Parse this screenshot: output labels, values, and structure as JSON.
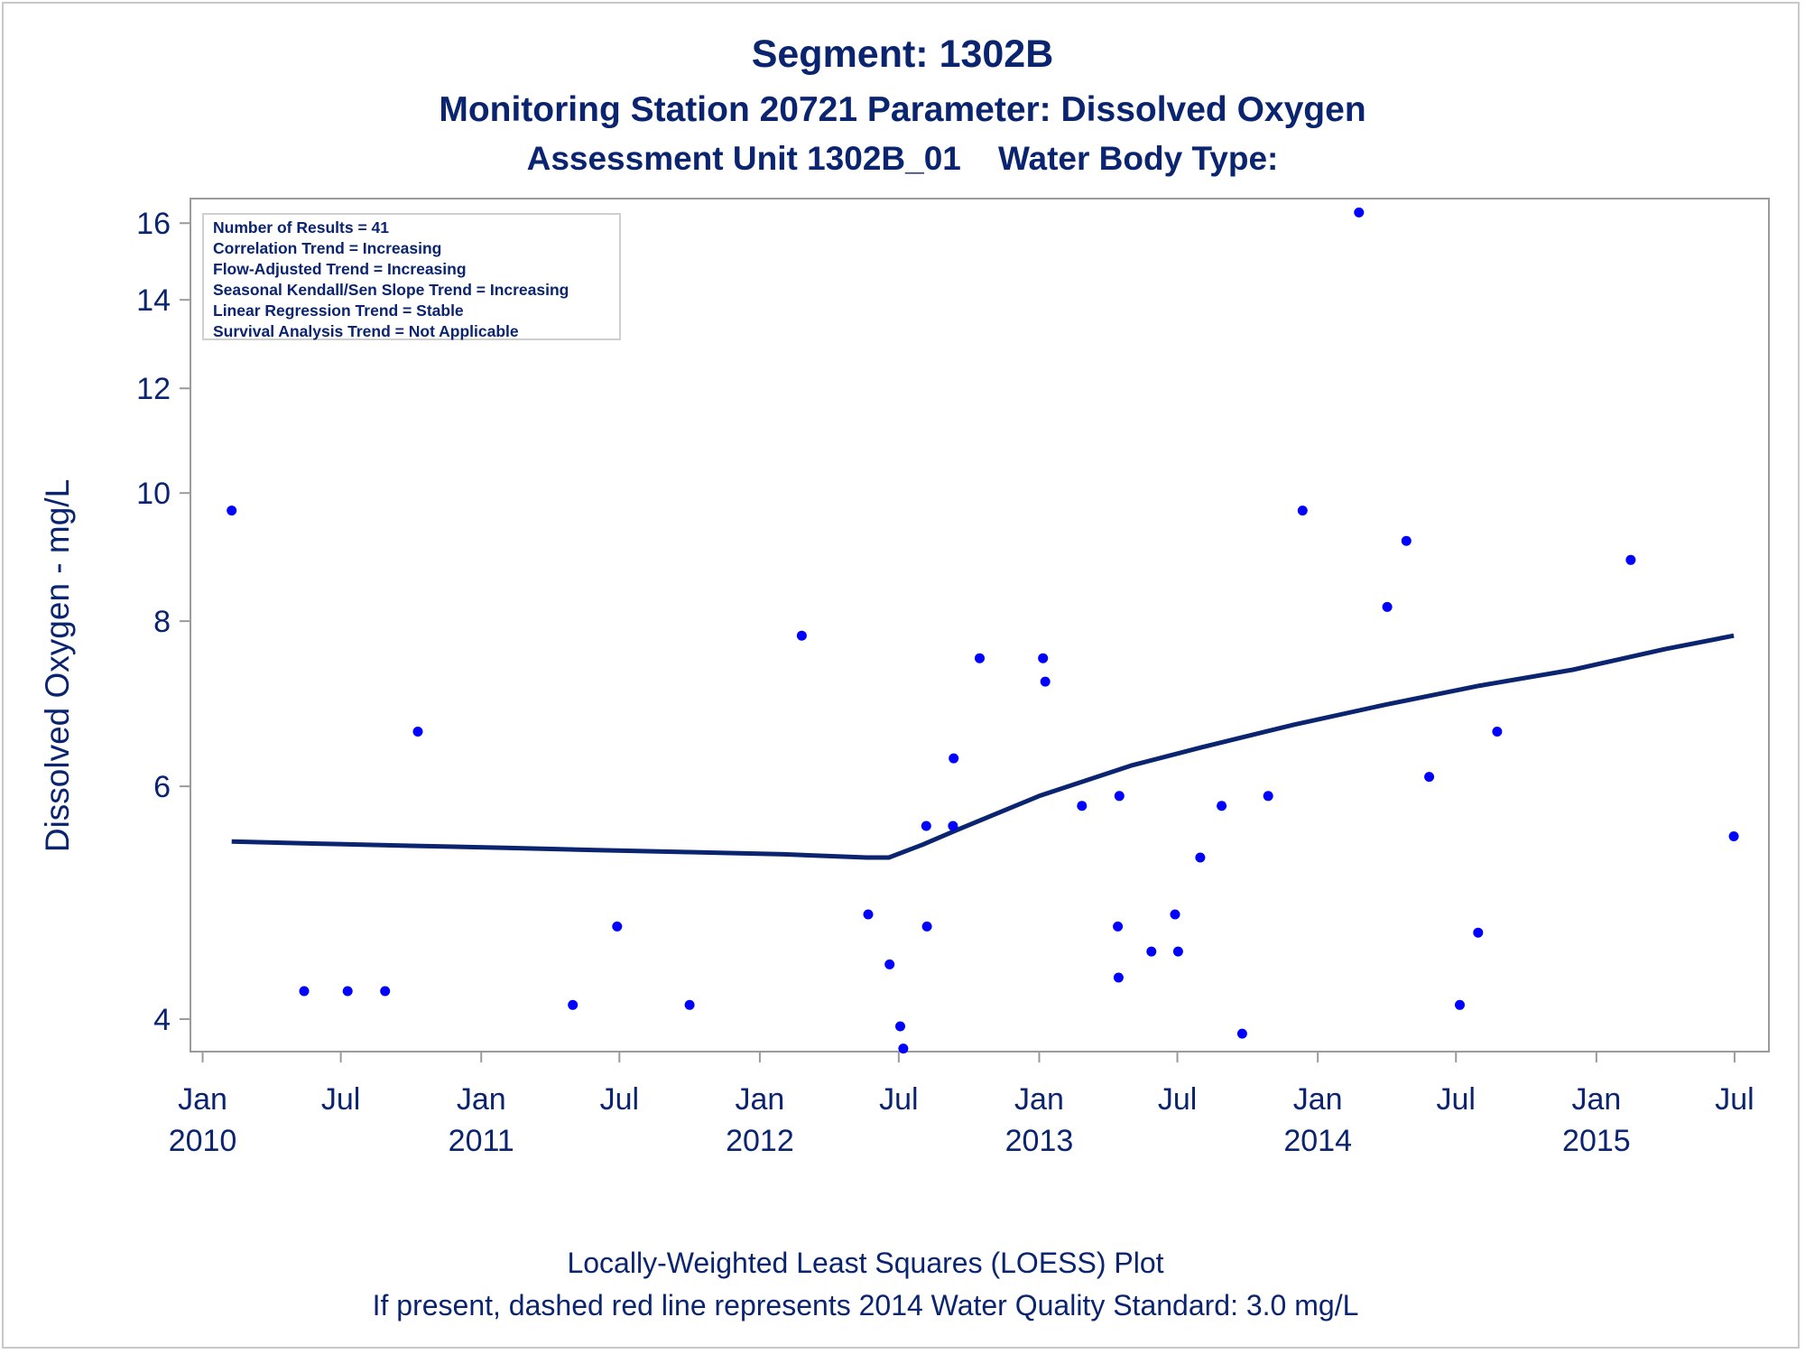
{
  "titles": {
    "line1": "Segment: 1302B",
    "line2": "Monitoring Station 20721 Parameter: Dissolved Oxygen",
    "line3": "Assessment Unit 1302B_01    Water Body Type:"
  },
  "footnotes": {
    "line1": "Locally-Weighted Least Squares (LOESS) Plot",
    "line2": "If present, dashed red line represents 2014 Water Quality Standard: 3.0 mg/L"
  },
  "stats_box": [
    "Number of Results = 41",
    "Correlation Trend = Increasing",
    "Flow-Adjusted Trend = Increasing",
    "Seasonal Kendall/Sen Slope Trend = Increasing",
    "Linear Regression Trend = Stable",
    "Survival Analysis Trend = Not Applicable"
  ],
  "colors": {
    "points": "#0000ff",
    "loess_line": "#0a2470",
    "text": "#0a2470",
    "axis": "#9a9a9a"
  },
  "chart_data": {
    "type": "scatter",
    "title": "Segment: 1302B",
    "xlabel": "",
    "ylabel": "Dissolved Oxygen - mg/L",
    "y_scale": "log",
    "xlim": [
      "2009-12-16",
      "2015-08-15"
    ],
    "ylim": [
      3.78,
      16.7
    ],
    "y_ticks": [
      4,
      6,
      8,
      10,
      12,
      14,
      16
    ],
    "x_ticks": [
      {
        "date": "2010-01-01",
        "label": "Jan",
        "year": "2010"
      },
      {
        "date": "2010-07-01",
        "label": "Jul",
        "year": ""
      },
      {
        "date": "2011-01-01",
        "label": "Jan",
        "year": "2011"
      },
      {
        "date": "2011-07-01",
        "label": "Jul",
        "year": ""
      },
      {
        "date": "2012-01-01",
        "label": "Jan",
        "year": "2012"
      },
      {
        "date": "2012-07-01",
        "label": "Jul",
        "year": ""
      },
      {
        "date": "2013-01-01",
        "label": "Jan",
        "year": "2013"
      },
      {
        "date": "2013-07-01",
        "label": "Jul",
        "year": ""
      },
      {
        "date": "2014-01-01",
        "label": "Jan",
        "year": "2014"
      },
      {
        "date": "2014-07-01",
        "label": "Jul",
        "year": ""
      },
      {
        "date": "2015-01-01",
        "label": "Jan",
        "year": "2015"
      },
      {
        "date": "2015-07-01",
        "label": "Jul",
        "year": ""
      }
    ],
    "grid": false,
    "series": [
      {
        "kind": "points",
        "x": [
          "2010-02-08",
          "2010-05-14",
          "2010-07-10",
          "2010-08-28",
          "2010-10-10",
          "2011-05-01",
          "2011-06-28",
          "2011-10-01",
          "2012-02-25",
          "2012-05-22",
          "2012-06-19",
          "2012-07-03",
          "2012-07-07",
          "2012-08-06",
          "2012-08-07",
          "2012-09-10",
          "2012-09-11",
          "2012-10-15",
          "2013-01-06",
          "2013-01-09",
          "2013-02-26",
          "2013-04-14",
          "2013-04-15",
          "2013-04-16",
          "2013-05-28",
          "2013-06-28",
          "2013-07-02",
          "2013-07-31",
          "2013-08-28",
          "2013-09-24",
          "2013-10-28",
          "2013-12-12",
          "2014-02-24",
          "2014-04-02",
          "2014-04-27",
          "2014-05-27",
          "2014-07-06",
          "2014-07-30",
          "2014-08-24",
          "2015-02-15",
          "2015-06-30"
        ],
        "y": [
          9.7,
          4.2,
          4.2,
          4.2,
          6.6,
          4.1,
          4.7,
          4.1,
          7.8,
          4.8,
          4.4,
          3.95,
          3.8,
          5.6,
          4.7,
          5.6,
          6.3,
          7.5,
          7.5,
          7.2,
          5.8,
          4.7,
          4.3,
          5.9,
          4.5,
          4.8,
          4.5,
          5.3,
          5.8,
          3.9,
          5.9,
          9.7,
          16.3,
          8.2,
          9.2,
          6.1,
          4.1,
          4.65,
          6.6,
          8.9,
          5.5
        ]
      },
      {
        "kind": "loess_line",
        "x": [
          "2010-02-08",
          "2010-06-01",
          "2010-10-01",
          "2011-02-01",
          "2011-06-01",
          "2011-10-01",
          "2012-02-01",
          "2012-05-20",
          "2012-06-18",
          "2012-08-01",
          "2012-09-15",
          "2013-01-01",
          "2013-05-01",
          "2013-08-01",
          "2013-12-01",
          "2014-04-01",
          "2014-08-01",
          "2014-12-01",
          "2015-04-01",
          "2015-06-30"
        ],
        "y": [
          5.45,
          5.43,
          5.41,
          5.39,
          5.37,
          5.35,
          5.33,
          5.3,
          5.3,
          5.42,
          5.56,
          5.9,
          6.22,
          6.42,
          6.68,
          6.92,
          7.15,
          7.35,
          7.62,
          7.8
        ]
      }
    ]
  }
}
